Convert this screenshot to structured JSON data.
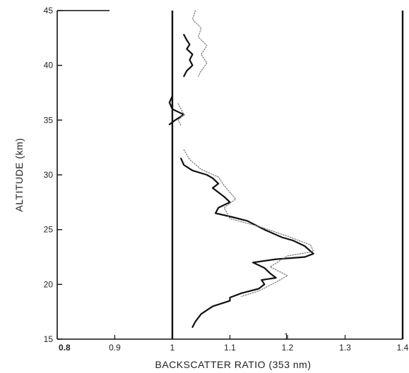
{
  "chart_data": {
    "type": "line",
    "title": "",
    "xlabel": "BACKSCATTER RATIO (353 nm)",
    "ylabel": "ALTITUDE (km)",
    "xlim": [
      0.8,
      1.4
    ],
    "ylim": [
      15,
      45
    ],
    "x_tick_labels": [
      "0.8",
      "0.9",
      "1",
      "1.1",
      "1.2",
      "1.3",
      "1.4"
    ],
    "y_tick_labels": [
      "15",
      "20",
      "25",
      "30",
      "35",
      "40",
      "45"
    ],
    "grid": false,
    "legend": "none",
    "corner_annotation": "1",
    "series": [
      {
        "style": "solid",
        "color": "#111111",
        "segments": [
          [
            [
              1.02,
              42.8
            ],
            [
              1.025,
              42.3
            ],
            [
              1.03,
              41.9
            ],
            [
              1.025,
              41.5
            ],
            [
              1.035,
              41.0
            ],
            [
              1.03,
              40.5
            ],
            [
              1.035,
              40.0
            ],
            [
              1.025,
              39.5
            ],
            [
              1.02,
              39.0
            ]
          ],
          [
            [
              1.0,
              37.2
            ],
            [
              0.995,
              36.6
            ],
            [
              1.0,
              36.0
            ],
            [
              1.02,
              35.5
            ],
            [
              1.005,
              35.0
            ],
            [
              0.995,
              34.6
            ]
          ],
          [
            [
              1.015,
              31.5
            ],
            [
              1.02,
              30.9
            ],
            [
              1.035,
              30.4
            ],
            [
              1.06,
              30.0
            ],
            [
              1.07,
              29.7
            ],
            [
              1.08,
              29.2
            ],
            [
              1.07,
              28.8
            ],
            [
              1.09,
              28.0
            ],
            [
              1.1,
              27.5
            ],
            [
              1.08,
              27.0
            ],
            [
              1.075,
              26.5
            ],
            [
              1.1,
              26.2
            ],
            [
              1.13,
              25.8
            ],
            [
              1.16,
              25.0
            ],
            [
              1.19,
              24.3
            ],
            [
              1.21,
              24.0
            ],
            [
              1.23,
              23.5
            ],
            [
              1.245,
              22.8
            ],
            [
              1.23,
              22.5
            ],
            [
              1.18,
              22.3
            ],
            [
              1.14,
              22.0
            ],
            [
              1.16,
              21.5
            ],
            [
              1.17,
              21.0
            ],
            [
              1.18,
              20.6
            ],
            [
              1.155,
              20.4
            ],
            [
              1.16,
              20.0
            ],
            [
              1.15,
              19.6
            ],
            [
              1.12,
              19.2
            ],
            [
              1.1,
              18.8
            ],
            [
              1.1,
              18.5
            ],
            [
              1.07,
              18.0
            ],
            [
              1.05,
              17.3
            ],
            [
              1.04,
              16.6
            ],
            [
              1.035,
              16.1
            ]
          ]
        ]
      },
      {
        "style": "dotted",
        "color": "#777777",
        "segments": [
          [
            [
              1.04,
              45.0
            ],
            [
              1.035,
              44.2
            ],
            [
              1.05,
              43.4
            ],
            [
              1.045,
              42.6
            ],
            [
              1.06,
              41.8
            ],
            [
              1.05,
              41.0
            ],
            [
              1.06,
              40.2
            ],
            [
              1.05,
              39.5
            ],
            [
              1.045,
              39.0
            ]
          ],
          [
            [
              1.01,
              36.5
            ],
            [
              1.02,
              35.5
            ],
            [
              1.01,
              35.0
            ],
            [
              1.015,
              34.5
            ]
          ],
          [
            [
              1.02,
              32.3
            ],
            [
              1.03,
              31.4
            ],
            [
              1.05,
              30.5
            ],
            [
              1.08,
              29.8
            ],
            [
              1.09,
              29.0
            ],
            [
              1.11,
              27.8
            ],
            [
              1.09,
              27.0
            ],
            [
              1.1,
              26.0
            ],
            [
              1.15,
              25.3
            ],
            [
              1.2,
              24.4
            ],
            [
              1.24,
              23.6
            ],
            [
              1.245,
              23.0
            ],
            [
              1.2,
              22.6
            ],
            [
              1.17,
              21.6
            ],
            [
              1.2,
              20.8
            ],
            [
              1.18,
              20.2
            ],
            [
              1.15,
              19.4
            ],
            [
              1.12,
              18.9
            ]
          ]
        ]
      }
    ]
  }
}
